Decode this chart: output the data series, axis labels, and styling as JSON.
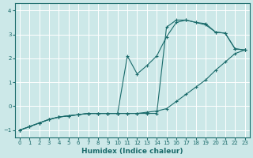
{
  "title": "",
  "xlabel": "Humidex (Indice chaleur)",
  "ylabel": "",
  "background_color": "#cce8e8",
  "grid_color": "#ffffff",
  "line_color": "#1a6b6b",
  "xlim": [
    -0.5,
    23.5
  ],
  "ylim": [
    -1.3,
    4.3
  ],
  "yticks": [
    -1,
    0,
    1,
    2,
    3,
    4
  ],
  "xticks": [
    0,
    1,
    2,
    3,
    4,
    5,
    6,
    7,
    8,
    9,
    10,
    11,
    12,
    13,
    14,
    15,
    16,
    17,
    18,
    19,
    20,
    21,
    22,
    23
  ],
  "series": [
    {
      "x": [
        0,
        1,
        2,
        3,
        4,
        5,
        6,
        7,
        8,
        9,
        10,
        11,
        12,
        13,
        14,
        15,
        16,
        17,
        18,
        19,
        20,
        21,
        22,
        23
      ],
      "y": [
        -1.0,
        -0.85,
        -0.7,
        -0.55,
        -0.45,
        -0.4,
        -0.35,
        -0.3,
        -0.3,
        -0.3,
        -0.3,
        2.1,
        1.35,
        1.7,
        2.1,
        2.9,
        3.5,
        3.6,
        3.5,
        3.4,
        3.1,
        3.05,
        2.4,
        2.35
      ]
    },
    {
      "x": [
        0,
        1,
        2,
        3,
        4,
        5,
        6,
        7,
        8,
        9,
        10,
        11,
        12,
        13,
        14,
        15,
        16,
        17,
        18,
        19,
        20,
        21,
        22,
        23
      ],
      "y": [
        -1.0,
        -0.85,
        -0.7,
        -0.55,
        -0.45,
        -0.4,
        -0.35,
        -0.3,
        -0.3,
        -0.3,
        -0.3,
        -0.3,
        -0.3,
        -0.3,
        -0.3,
        3.3,
        3.6,
        3.6,
        3.5,
        3.45,
        3.1,
        3.05,
        2.4,
        2.35
      ]
    },
    {
      "x": [
        0,
        1,
        2,
        3,
        4,
        5,
        6,
        7,
        8,
        9,
        10,
        11,
        12,
        13,
        14,
        15,
        16,
        17,
        18,
        19,
        20,
        21,
        22,
        23
      ],
      "y": [
        -1.0,
        -0.85,
        -0.7,
        -0.55,
        -0.45,
        -0.4,
        -0.35,
        -0.3,
        -0.3,
        -0.3,
        -0.3,
        -0.3,
        -0.3,
        -0.25,
        -0.2,
        -0.1,
        0.2,
        0.5,
        0.8,
        1.1,
        1.5,
        1.85,
        2.2,
        2.35
      ]
    }
  ]
}
